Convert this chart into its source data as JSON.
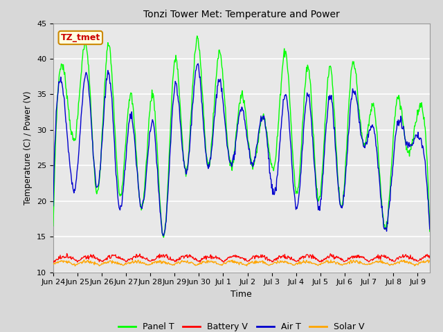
{
  "title": "Tonzi Tower Met: Temperature and Power",
  "xlabel": "Time",
  "ylabel": "Temperature (C) / Power (V)",
  "ylim": [
    10,
    45
  ],
  "yticks": [
    10,
    15,
    20,
    25,
    30,
    35,
    40,
    45
  ],
  "colors": {
    "panel_t": "#00FF00",
    "battery_v": "#FF0000",
    "air_t": "#0000CD",
    "solar_v": "#FFA500"
  },
  "legend_labels": [
    "Panel T",
    "Battery V",
    "Air T",
    "Solar V"
  ],
  "fig_bg_color": "#D8D8D8",
  "plot_bg": "#E8E8E8",
  "annotation_text": "TZ_tmet",
  "annotation_color": "#CC0000",
  "annotation_bg": "#FFFFE0",
  "annotation_border": "#CC8800",
  "x_tick_labels": [
    "Jun 24",
    "Jun 25",
    "Jun 26",
    "Jun 27",
    "Jun 28",
    "Jun 29",
    "Jun 30",
    "Jul 1",
    "Jul 2",
    "Jul 3",
    "Jul 4",
    "Jul 5",
    "Jul 6",
    "Jul 7",
    "Jul 8",
    "Jul 9"
  ],
  "grid_color": "#FFFFFF",
  "n_days": 15.5,
  "n_points": 744,
  "panel_t_peaks": [
    16,
    38,
    29,
    42,
    21,
    42,
    21,
    35,
    19,
    35,
    15,
    40,
    24,
    43,
    25,
    41,
    25,
    35,
    25,
    32,
    25,
    41,
    21,
    39,
    20,
    39,
    19,
    39,
    28,
    33,
    16,
    34,
    27,
    33,
    16
  ],
  "air_t_peaks": [
    20,
    34,
    22,
    38,
    22,
    38,
    19,
    32,
    19,
    31,
    15,
    36,
    24,
    39,
    25,
    37,
    25,
    33,
    25,
    32,
    21,
    35,
    19,
    35,
    19,
    35,
    19,
    35,
    28,
    30,
    16,
    30,
    28,
    29,
    16
  ],
  "battery_v_base": 11.5,
  "battery_v_amp": 1.0,
  "solar_v_base": 11.0,
  "solar_v_amp": 0.7
}
